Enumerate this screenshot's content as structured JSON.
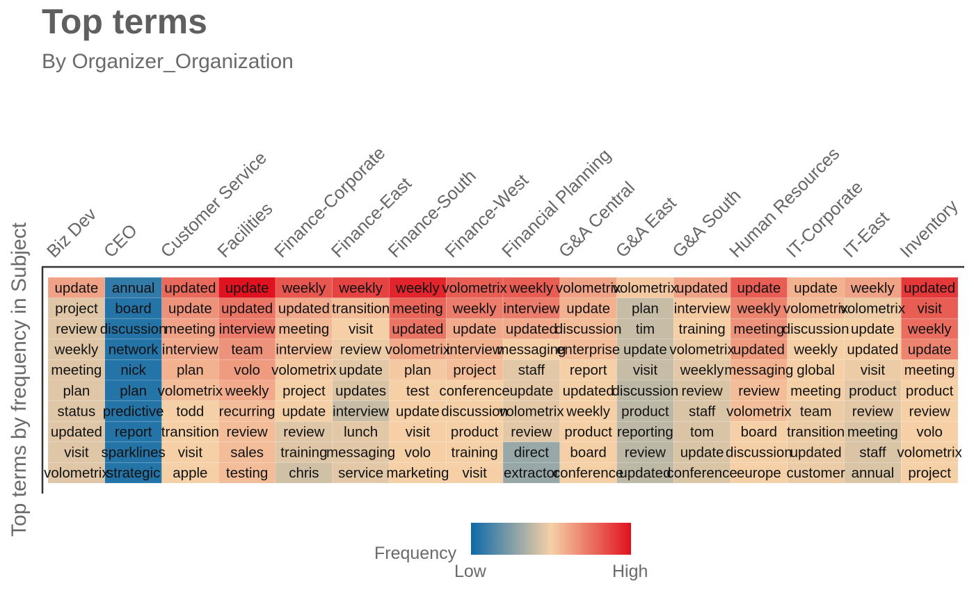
{
  "chart_data": {
    "type": "heatmap",
    "title": "Top terms",
    "subtitle": "By Organizer_Organization",
    "ylabel": "Top terms by frequency in Subject",
    "legend": {
      "title": "Frequency",
      "low_label": "Low",
      "high_label": "High",
      "colors": [
        "#0d6aa8",
        "#f5d0a6",
        "#e0121f"
      ],
      "placement": "bottom"
    },
    "columns": [
      {
        "name": "Biz Dev",
        "terms": [
          "update",
          "project",
          "review",
          "weekly",
          "meeting",
          "plan",
          "status",
          "updated",
          "visit",
          "volometrix"
        ],
        "values": [
          0.62,
          0.45,
          0.45,
          0.45,
          0.45,
          0.45,
          0.45,
          0.45,
          0.45,
          0.45
        ]
      },
      {
        "name": "CEO",
        "terms": [
          "annual",
          "board",
          "discussion",
          "network",
          "nick",
          "plan",
          "predictive",
          "report",
          "sparklines",
          "strategic"
        ],
        "values": [
          0.08,
          0.05,
          0.05,
          0.05,
          0.05,
          0.05,
          0.05,
          0.05,
          0.05,
          0.05
        ]
      },
      {
        "name": "Customer Service",
        "terms": [
          "updated",
          "update",
          "meeting",
          "interview",
          "plan",
          "volometrix",
          "todd",
          "transition",
          "visit",
          "apple"
        ],
        "values": [
          0.77,
          0.66,
          0.62,
          0.6,
          0.58,
          0.55,
          0.5,
          0.5,
          0.5,
          0.5
        ]
      },
      {
        "name": "Facilities",
        "terms": [
          "update",
          "updated",
          "interview",
          "team",
          "volo",
          "weekly",
          "recurring",
          "review",
          "sales",
          "testing"
        ],
        "values": [
          1.0,
          0.74,
          0.72,
          0.66,
          0.64,
          0.6,
          0.55,
          0.55,
          0.55,
          0.55
        ]
      },
      {
        "name": "Finance-Corporate",
        "terms": [
          "weekly",
          "updated",
          "meeting",
          "interview",
          "volometrix",
          "project",
          "update",
          "review",
          "training",
          "chris"
        ],
        "values": [
          0.82,
          0.6,
          0.56,
          0.55,
          0.52,
          0.5,
          0.5,
          0.45,
          0.45,
          0.42
        ]
      },
      {
        "name": "Finance-East",
        "terms": [
          "weekly",
          "transition",
          "visit",
          "review",
          "update",
          "updates",
          "interview",
          "lunch",
          "messaging",
          "service"
        ],
        "values": [
          0.87,
          0.55,
          0.5,
          0.48,
          0.46,
          0.44,
          0.4,
          0.46,
          0.46,
          0.46
        ]
      },
      {
        "name": "Finance-South",
        "terms": [
          "weekly",
          "meeting",
          "updated",
          "volometrix",
          "plan",
          "test",
          "update",
          "visit",
          "volo",
          "marketing"
        ],
        "values": [
          0.95,
          0.78,
          0.74,
          0.6,
          0.52,
          0.5,
          0.5,
          0.5,
          0.5,
          0.5
        ]
      },
      {
        "name": "Finance-West",
        "terms": [
          "volometrix",
          "weekly",
          "update",
          "interview",
          "project",
          "conference",
          "discussion",
          "product",
          "training",
          "visit"
        ],
        "values": [
          0.8,
          0.72,
          0.6,
          0.58,
          0.55,
          0.5,
          0.5,
          0.5,
          0.5,
          0.5
        ]
      },
      {
        "name": "Financial Planning",
        "terms": [
          "weekly",
          "interview",
          "updated",
          "messaging",
          "staff",
          "update",
          "volometrix",
          "review",
          "direct",
          "extractor"
        ],
        "values": [
          0.8,
          0.72,
          0.6,
          0.5,
          0.46,
          0.46,
          0.46,
          0.46,
          0.3,
          0.3
        ]
      },
      {
        "name": "G&A Central",
        "terms": [
          "volometrix",
          "update",
          "discussion",
          "enterprise",
          "report",
          "updated",
          "weekly",
          "product",
          "board",
          "conference"
        ],
        "values": [
          0.62,
          0.58,
          0.55,
          0.55,
          0.5,
          0.5,
          0.5,
          0.5,
          0.5,
          0.5
        ]
      },
      {
        "name": "G&A East",
        "terms": [
          "volometrix",
          "plan",
          "tim",
          "update",
          "visit",
          "discussion",
          "product",
          "reporting",
          "review",
          "updated"
        ],
        "values": [
          0.52,
          0.4,
          0.4,
          0.4,
          0.4,
          0.38,
          0.38,
          0.38,
          0.38,
          0.38
        ]
      },
      {
        "name": "G&A South",
        "terms": [
          "updated",
          "interview",
          "training",
          "volometrix",
          "weekly",
          "review",
          "staff",
          "tom",
          "update",
          "conference"
        ],
        "values": [
          0.62,
          0.52,
          0.5,
          0.48,
          0.46,
          0.44,
          0.44,
          0.44,
          0.44,
          0.44
        ]
      },
      {
        "name": "Human Resources",
        "terms": [
          "update",
          "weekly",
          "meeting",
          "updated",
          "messaging",
          "review",
          "volometrix",
          "board",
          "discussion",
          "europe"
        ],
        "values": [
          0.8,
          0.7,
          0.66,
          0.64,
          0.58,
          0.55,
          0.55,
          0.5,
          0.5,
          0.5
        ]
      },
      {
        "name": "IT-Corporate",
        "terms": [
          "update",
          "volometrix",
          "discussion",
          "weekly",
          "global",
          "meeting",
          "team",
          "transition",
          "updated",
          "customer"
        ],
        "values": [
          0.58,
          0.55,
          0.5,
          0.5,
          0.5,
          0.5,
          0.48,
          0.48,
          0.48,
          0.48
        ]
      },
      {
        "name": "IT-East",
        "terms": [
          "weekly",
          "volometrix",
          "update",
          "updated",
          "visit",
          "product",
          "review",
          "meeting",
          "staff",
          "annual"
        ],
        "values": [
          0.62,
          0.48,
          0.5,
          0.5,
          0.48,
          0.46,
          0.46,
          0.44,
          0.44,
          0.44
        ]
      },
      {
        "name": "Inventory",
        "terms": [
          "updated",
          "visit",
          "weekly",
          "update",
          "meeting",
          "product",
          "review",
          "volo",
          "volometrix",
          "project"
        ],
        "values": [
          0.9,
          0.8,
          0.76,
          0.7,
          0.52,
          0.5,
          0.5,
          0.5,
          0.5,
          0.5
        ]
      }
    ]
  }
}
